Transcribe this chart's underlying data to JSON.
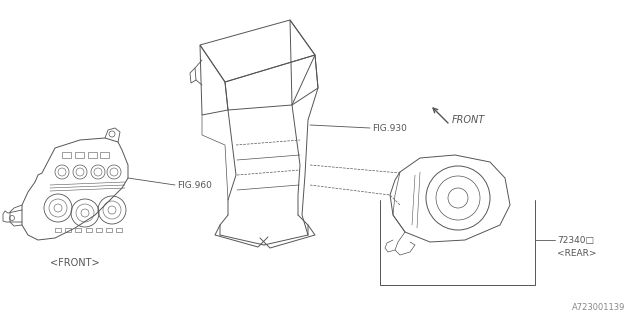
{
  "bg_color": "#ffffff",
  "line_color": "#555555",
  "label_color": "#555555",
  "fig_width": 6.4,
  "fig_height": 3.2,
  "dpi": 100,
  "watermark": "A723001139",
  "labels": {
    "fig930": "FIG.930",
    "fig960": "FIG.960",
    "part_num": "72340□",
    "front_arrow": "FRONT",
    "front_tag": "<FRONT>",
    "rear_tag": "<REAR>"
  }
}
